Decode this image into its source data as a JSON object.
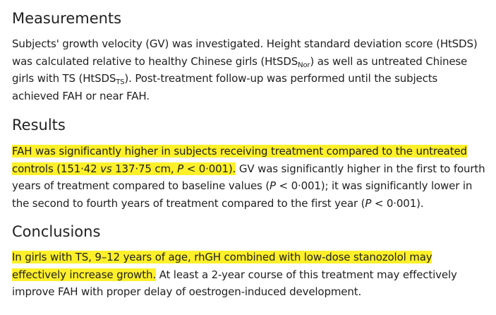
{
  "sections": {
    "measurements": {
      "heading": "Measurements",
      "p1": "Subjects' growth velocity (GV) was investigated. Height standard deviation score (HtSDS)",
      "p2": "was calculated relative to healthy Chinese girls (HtSDS",
      "sub_nor": "Nor",
      "p3": ") as well as untreated Chinese",
      "p4": "girls with TS (HtSDS",
      "sub_ts": "TS",
      "p5": "). Post-treatment follow-up was performed until the subjects",
      "p6": "achieved FAH or near FAH."
    },
    "results": {
      "heading": "Results",
      "hl1": "FAH was significantly higher in subjects receiving treatment compared to the untreated",
      "hl2a": "controls (151·42 ",
      "hl2_vs": "vs",
      "hl2b": " 137·75 cm, ",
      "hl2_p": "P",
      "hl2c": " < 0·001).",
      "t1": " GV was significantly higher in the first to fourth",
      "t2a": "years of treatment compared to baseline values (",
      "t2_p": "P",
      "t2b": " < 0·001); it was significantly lower in",
      "t3a": "the second to fourth years of treatment compared to the first year (",
      "t3_p": "P",
      "t3b": " < 0·001)."
    },
    "conclusions": {
      "heading": "Conclusions",
      "hl1": "In girls with TS, 9–12 years of age, rhGH combined with low-dose stanozolol may",
      "hl2": "effectively increase growth.",
      "t1": " At least a 2-year course of this treatment may effectively",
      "t2": "improve FAH with proper delay of oestrogen-induced development."
    }
  },
  "colors": {
    "highlight": "#fff02a",
    "text": "#1f1f1f"
  }
}
